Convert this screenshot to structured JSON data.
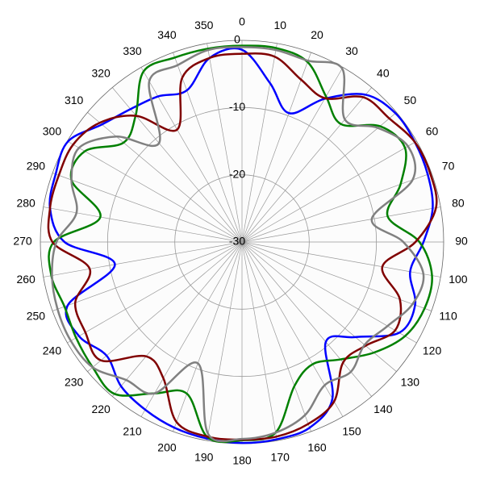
{
  "chart_data": {
    "type": "polar",
    "x": [
      0,
      10,
      20,
      30,
      40,
      50,
      60,
      70,
      80,
      90,
      100,
      110,
      120,
      130,
      140,
      150,
      160,
      170,
      180,
      190,
      200,
      210,
      220,
      230,
      240,
      250,
      260,
      270,
      280,
      290,
      300,
      310,
      320,
      330,
      340,
      350
    ],
    "ylim": [
      -30,
      0
    ],
    "yticks": [
      -30,
      -20,
      -10,
      0
    ],
    "grid": true,
    "series": [
      {
        "color": "#0000ff",
        "values": [
          -1.4,
          -6,
          -9.6,
          -5.4,
          -1.4,
          -0.2,
          -0.3,
          -0.6,
          -1.2,
          -3,
          -4.6,
          -2.6,
          -3,
          -8,
          -10.6,
          -3.1,
          -0.6,
          -0.2,
          -0.1,
          -0.3,
          -0.6,
          -1.2,
          -2,
          -3.7,
          -2,
          -2.4,
          -10.8,
          -3.6,
          -1,
          -0.5,
          -0.1,
          -2.8,
          -4.2,
          -5,
          -6,
          -2.2
        ]
      },
      {
        "color": "#008000",
        "values": [
          -0.8,
          -0.7,
          -1.5,
          -5,
          -7.1,
          -3.2,
          -2,
          -4.9,
          -8,
          -3.6,
          -1.3,
          -1.1,
          -2,
          -4.4,
          -7.2,
          -9,
          -7.2,
          -1.2,
          -0.5,
          -0.5,
          -6,
          -4,
          -0.5,
          -1,
          -1.5,
          -1.9,
          -1.2,
          -2,
          -8.6,
          -3,
          -3,
          -7,
          -5.4,
          -0.7,
          -0.8,
          -0.8
        ]
      },
      {
        "color": "#800000",
        "values": [
          -2,
          -2,
          -4.3,
          -5.3,
          -1.9,
          -1.4,
          -0.3,
          -0.2,
          -0.7,
          -4.2,
          -8.8,
          -5,
          -3.7,
          -6,
          -6.6,
          -2.6,
          -1.2,
          -0.6,
          -0.6,
          -0.6,
          -1.5,
          -6.6,
          -7.8,
          -2.6,
          -3.1,
          -3.6,
          -7,
          -1.8,
          -1,
          -1,
          -1,
          -2.4,
          -5.5,
          -10.7,
          -4,
          -2.2
        ]
      },
      {
        "color": "#808080",
        "values": [
          -1,
          -1,
          -1.3,
          -0.2,
          -6.2,
          -3.6,
          -1.5,
          -3,
          -10.4,
          -6,
          -2.6,
          -3,
          -5,
          -6.2,
          -4.8,
          -5.4,
          -2.6,
          -1.2,
          -0.7,
          -1,
          -10.8,
          -4,
          -3.2,
          -1,
          -0.6,
          -0.8,
          -1.3,
          -2.4,
          -5,
          -3,
          -2,
          -5.6,
          -10.8,
          -2.4,
          -2,
          -1
        ]
      }
    ]
  }
}
